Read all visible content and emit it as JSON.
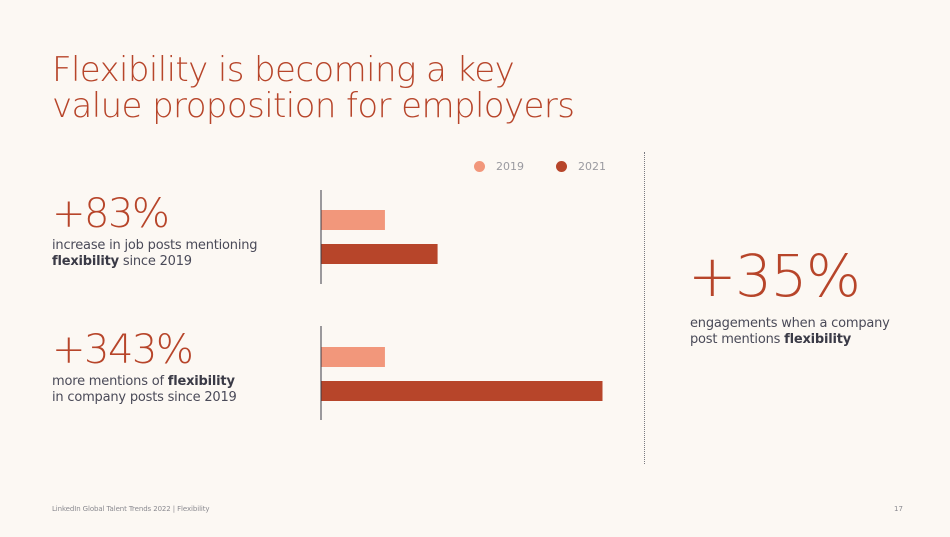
{
  "title": {
    "line1": "Flexibility is becoming a key",
    "line2": "value proposition for employers"
  },
  "legend": [
    {
      "label": "2019",
      "color": "#f2977b"
    },
    {
      "label": "2021",
      "color": "#b7452a"
    }
  ],
  "stats": [
    {
      "value": "+83%",
      "desc_before": "increase in job posts mentioning",
      "desc_bold": "flexibility",
      "desc_after": " since 2019"
    },
    {
      "value": "+343%",
      "desc_before": "more mentions of ",
      "desc_bold": "flexibility",
      "desc_after": "in company posts since 2019"
    }
  ],
  "side_stat": {
    "value": "+35%",
    "desc_before": "engagements when a company",
    "desc_before2": "post mentions ",
    "desc_bold": "flexibility"
  },
  "chart_data": [
    {
      "type": "bar",
      "orientation": "horizontal",
      "categories": [
        "job posts mentioning flexibility"
      ],
      "series": [
        {
          "name": "2019",
          "color": "#f2977b",
          "values": [
            1.0
          ]
        },
        {
          "name": "2021",
          "color": "#b7452a",
          "values": [
            1.83
          ]
        }
      ],
      "ylim": [
        0,
        4.43
      ],
      "grid": false,
      "legend": "top-right"
    },
    {
      "type": "bar",
      "orientation": "horizontal",
      "categories": [
        "mentions of flexibility in company posts"
      ],
      "series": [
        {
          "name": "2019",
          "color": "#f2977b",
          "values": [
            1.0
          ]
        },
        {
          "name": "2021",
          "color": "#b7452a",
          "values": [
            4.43
          ]
        }
      ],
      "ylim": [
        0,
        4.43
      ],
      "grid": false,
      "legend": "top-right"
    }
  ],
  "footer": {
    "text": "LinkedIn Global Talent Trends 2022  |  Flexibility",
    "page": "17"
  }
}
